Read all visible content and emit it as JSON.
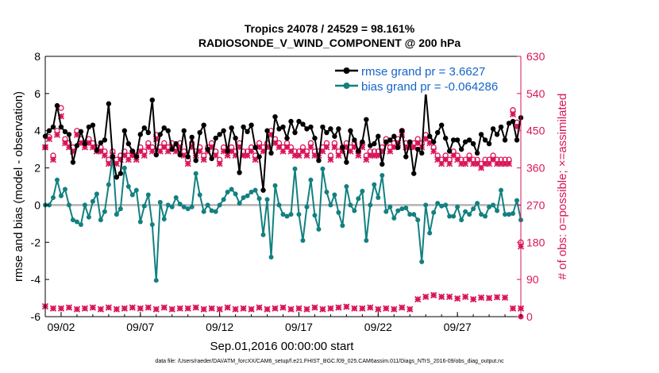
{
  "title_line1": "Tropics 24078 / 24529 = 98.161%",
  "title_line2": "RADIOSONDE_V_WIND_COMPONENT @ 200 hPa",
  "footer_text": "data file: /Users/raeder/DAI/ATM_forcXX/CAM6_setup/f.e21.FHIST_BGC.f09_025.CAM6assim.011/Diags_NTrS_2016-09/obs_diag_output.nc",
  "colors": {
    "rmse": "#000000",
    "bias": "#138080",
    "obs": "#d9155a",
    "zero_line": "#b3b3b3",
    "legend_text": "#1565c8"
  },
  "chart_data": {
    "type": "line",
    "xlabel": "Sep.01,2016 00:00:00 start",
    "ylabel": "rmse and bias (model - observation)",
    "y2label": "# of obs: o=possible; ×=assimilated",
    "x_tick_labels": [
      "09/02",
      "09/07",
      "09/12",
      "09/17",
      "09/22",
      "09/27"
    ],
    "x_tick_days": [
      2,
      7,
      12,
      17,
      22,
      27
    ],
    "xlim": [
      1.0,
      31.0
    ],
    "ylim": [
      -6,
      8
    ],
    "y_ticks": [
      -6,
      -4,
      -2,
      0,
      2,
      4,
      6,
      8
    ],
    "y2lim": [
      0,
      630
    ],
    "y2_ticks": [
      0,
      90,
      180,
      270,
      360,
      450,
      540,
      630
    ],
    "legend": [
      {
        "label": "rmse grand pr = 3.6627",
        "series": "rmse"
      },
      {
        "label": "bias grand pr = -0.064286",
        "series": "bias"
      }
    ],
    "x": [
      1.0,
      1.25,
      1.5,
      1.75,
      2.0,
      2.25,
      2.5,
      2.75,
      3.0,
      3.25,
      3.5,
      3.75,
      4.0,
      4.25,
      4.5,
      4.75,
      5.0,
      5.25,
      5.5,
      5.75,
      6.0,
      6.25,
      6.5,
      6.75,
      7.0,
      7.25,
      7.5,
      7.75,
      8.0,
      8.25,
      8.5,
      8.75,
      9.0,
      9.25,
      9.5,
      9.75,
      10.0,
      10.25,
      10.5,
      10.75,
      11.0,
      11.25,
      11.5,
      11.75,
      12.0,
      12.25,
      12.5,
      12.75,
      13.0,
      13.25,
      13.5,
      13.75,
      14.0,
      14.25,
      14.5,
      14.75,
      15.0,
      15.25,
      15.5,
      15.75,
      16.0,
      16.25,
      16.5,
      16.75,
      17.0,
      17.25,
      17.5,
      17.75,
      18.0,
      18.25,
      18.5,
      18.75,
      19.0,
      19.25,
      19.5,
      19.75,
      20.0,
      20.25,
      20.5,
      20.75,
      21.0,
      21.25,
      21.5,
      21.75,
      22.0,
      22.25,
      22.5,
      22.75,
      23.0,
      23.25,
      23.5,
      23.75,
      24.0,
      24.25,
      24.5,
      24.75,
      25.0,
      25.25,
      25.5,
      25.75,
      26.0,
      26.25,
      26.5,
      26.75,
      27.0,
      27.25,
      27.5,
      27.75,
      28.0,
      28.25,
      28.5,
      28.75,
      29.0,
      29.25,
      29.5,
      29.75,
      30.0,
      30.25,
      30.5,
      30.75,
      31.0
    ],
    "series": [
      {
        "name": "rmse",
        "values": [
          3.7,
          4.0,
          4.2,
          5.35,
          4.2,
          3.95,
          3.8,
          2.3,
          3.2,
          3.95,
          3.3,
          4.2,
          4.3,
          2.95,
          3.35,
          3.5,
          5.45,
          2.6,
          1.5,
          1.7,
          4.0,
          3.3,
          2.9,
          2.6,
          3.8,
          4.15,
          3.9,
          5.65,
          2.7,
          3.8,
          4.15,
          4.0,
          3.0,
          3.3,
          2.7,
          4.0,
          2.6,
          3.65,
          2.4,
          3.9,
          4.3,
          3.0,
          2.5,
          3.6,
          3.8,
          4.0,
          2.9,
          4.15,
          3.6,
          1.75,
          4.2,
          3.95,
          4.3,
          3.1,
          2.6,
          0.8,
          4.0,
          2.8,
          4.75,
          4.1,
          4.2,
          3.6,
          4.5,
          3.9,
          4.5,
          4.35,
          4.1,
          4.2,
          3.6,
          2.4,
          4.2,
          3.9,
          4.1,
          3.7,
          4.1,
          3.1,
          2.3,
          4.0,
          3.5,
          2.9,
          3.4,
          4.6,
          3.2,
          3.3,
          3.7,
          2.2,
          3.4,
          3.5,
          3.7,
          3.1,
          4.0,
          2.6,
          3.4,
          1.7,
          3.0,
          2.8,
          6.1,
          3.7,
          3.4,
          3.9,
          4.3,
          3.6,
          2.9,
          3.5,
          3.5,
          3.0,
          3.4,
          3.5,
          3.3,
          2.8,
          3.8,
          3.5,
          3.3,
          4.1,
          3.8,
          4.2,
          3.5,
          4.4,
          4.5,
          3.5,
          4.7
        ]
      },
      {
        "name": "bias",
        "values": [
          0.0,
          0.0,
          0.4,
          1.35,
          0.5,
          0.85,
          0.0,
          -0.8,
          -0.9,
          -1.05,
          0.0,
          -0.65,
          0.2,
          0.6,
          -0.8,
          -0.35,
          1.1,
          2.55,
          -0.5,
          -0.2,
          2.0,
          1.0,
          0.55,
          0.8,
          -0.9,
          -0.05,
          0.55,
          -1.05,
          -4.05,
          0.15,
          -0.75,
          0.0,
          -0.1,
          0.4,
          0.05,
          -0.1,
          -0.2,
          -0.1,
          1.7,
          0.55,
          -0.35,
          0.0,
          -0.3,
          -0.35,
          0.0,
          0.3,
          0.7,
          0.85,
          0.6,
          0.1,
          0.4,
          0.5,
          0.7,
          0.8,
          0.35,
          -1.6,
          0.3,
          -2.8,
          1.05,
          0.0,
          -0.5,
          -0.6,
          -0.5,
          1.95,
          -0.5,
          -1.9,
          -0.1,
          1.35,
          -0.55,
          -1.3,
          1.95,
          0.7,
          0.0,
          0.55,
          -0.4,
          -1.1,
          1.0,
          0.0,
          -0.3,
          0.35,
          0.75,
          -1.9,
          0.0,
          1.1,
          0.4,
          1.6,
          -0.35,
          -0.1,
          -0.7,
          -0.3,
          -0.2,
          -0.15,
          -0.5,
          -0.5,
          -0.8,
          -3.05,
          0.0,
          -1.5,
          -0.4,
          0.1,
          -0.05,
          0.0,
          -0.6,
          -0.6,
          -0.1,
          -0.8,
          -0.35,
          -0.5,
          -0.2,
          0.1,
          -0.5,
          -0.6,
          -0.1,
          0.0,
          -0.3,
          0.8,
          -0.5,
          -0.5,
          -0.45,
          0.25,
          -0.8
        ]
      },
      {
        "name": "obs_possible",
        "values": [
          410,
          435,
          390,
          450,
          505,
          430,
          420,
          410,
          450,
          430,
          420,
          430,
          420,
          410,
          410,
          400,
          380,
          400,
          380,
          390,
          400,
          390,
          400,
          390,
          410,
          400,
          420,
          410,
          440,
          410,
          420,
          410,
          420,
          410,
          420,
          400,
          380,
          420,
          400,
          410,
          390,
          410,
          420,
          400,
          380,
          410,
          400,
          410,
          400,
          420,
          400,
          400,
          410,
          390,
          420,
          410,
          420,
          450,
          430,
          420,
          410,
          420,
          410,
          400,
          400,
          410,
          400,
          420,
          400,
          400,
          410,
          420,
          390,
          420,
          400,
          410,
          420,
          410,
          420,
          400,
          420,
          390,
          400,
          400,
          400,
          410,
          430,
          410,
          420,
          430,
          450,
          420,
          420,
          420,
          430,
          420,
          440,
          430,
          410,
          390,
          380,
          390,
          380,
          400,
          390,
          380,
          380,
          390,
          380,
          380,
          370,
          380,
          380,
          390,
          380,
          380,
          380,
          380,
          500,
          470,
          180
        ]
      },
      {
        "name": "obs_assimilated",
        "values": [
          410,
          430,
          380,
          440,
          485,
          420,
          410,
          400,
          440,
          420,
          410,
          420,
          410,
          400,
          400,
          390,
          370,
          390,
          370,
          380,
          390,
          380,
          390,
          380,
          400,
          390,
          410,
          400,
          430,
          400,
          410,
          400,
          410,
          400,
          410,
          390,
          370,
          410,
          390,
          400,
          380,
          400,
          410,
          390,
          370,
          400,
          390,
          400,
          390,
          410,
          390,
          390,
          400,
          380,
          410,
          400,
          410,
          440,
          420,
          410,
          400,
          410,
          400,
          390,
          390,
          400,
          390,
          410,
          390,
          390,
          400,
          410,
          380,
          410,
          390,
          400,
          410,
          400,
          410,
          390,
          410,
          380,
          390,
          390,
          390,
          400,
          420,
          400,
          410,
          420,
          440,
          410,
          410,
          410,
          420,
          410,
          430,
          420,
          400,
          380,
          370,
          380,
          370,
          390,
          380,
          370,
          370,
          380,
          370,
          370,
          360,
          370,
          370,
          380,
          370,
          370,
          370,
          370,
          490,
          460,
          170
        ]
      }
    ]
  }
}
